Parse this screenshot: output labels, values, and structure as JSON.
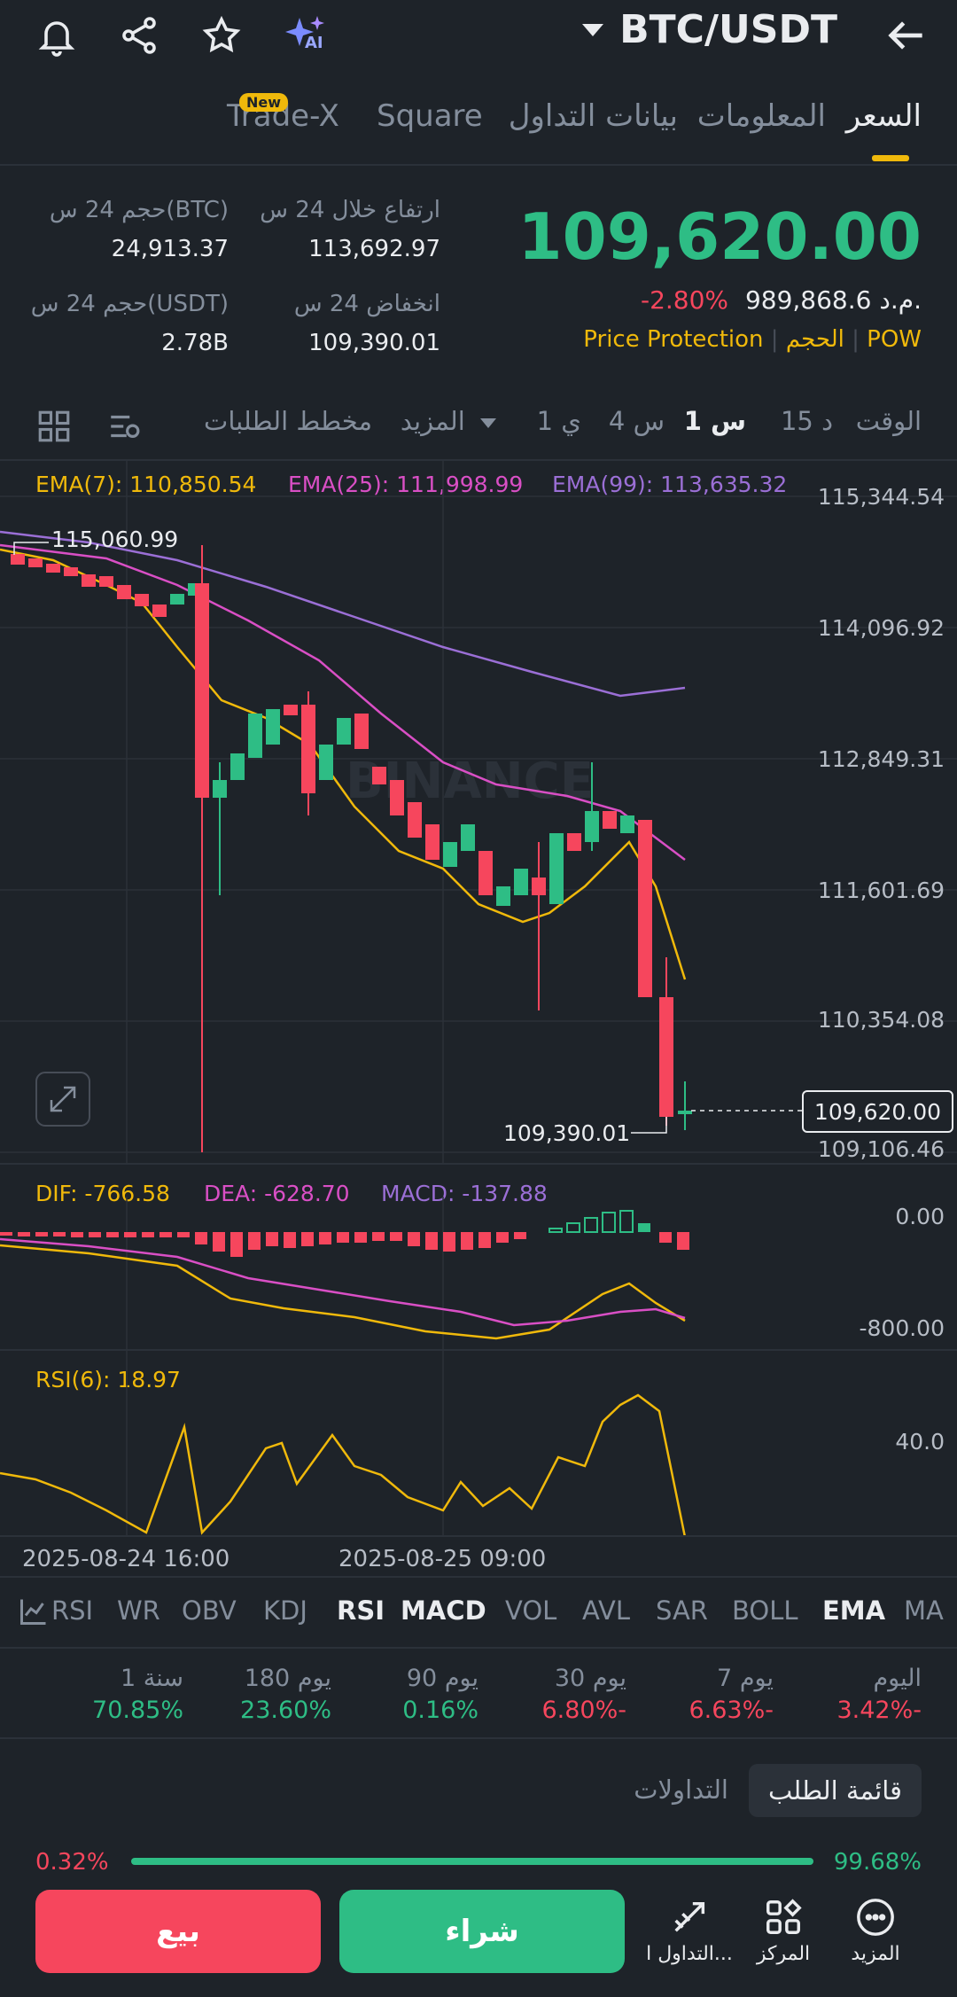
{
  "header": {
    "pair": "BTC/USDT",
    "icons": [
      "bell-icon",
      "share-icon",
      "star-icon",
      "ai-icon",
      "back-arrow-icon"
    ],
    "ai_label": "AI"
  },
  "tabs": [
    {
      "label": "السعر",
      "active": true
    },
    {
      "label": "المعلومات"
    },
    {
      "label": "بيانات التداول"
    },
    {
      "label": "Square"
    },
    {
      "label": "Trade-X"
    }
  ],
  "new_badge": "New",
  "price": {
    "last": "109,620.00",
    "change_pct": "-2.80%",
    "fiat": "989,868.6",
    "fiat_currency": "م.د.",
    "tags": [
      "Price Protection",
      "الحجم",
      "POW"
    ]
  },
  "stats": {
    "high_label": "ارتفاع خلال 24 س",
    "high_value": "113,692.97",
    "low_label": "انخفاض 24 س",
    "low_value": "109,390.01",
    "vol_btc_label": "حجم 24 س(BTC)",
    "vol_btc_value": "24,913.37",
    "vol_usdt_label": "حجم 24 س(USDT)",
    "vol_usdt_value": "2.78B"
  },
  "timeframes": {
    "time_label": "الوقت",
    "items": [
      "15 د",
      "1 س",
      "4 س",
      "1 ي"
    ],
    "active": "1 س",
    "more": "المزيد",
    "depth": "مخطط الطلبات"
  },
  "ema": {
    "ema7": "EMA(7): 110,850.54",
    "ema25": "EMA(25): 111,998.99",
    "ema99": "EMA(99): 113,635.32"
  },
  "price_axis": [
    "115,344.54",
    "114,096.92",
    "112,849.31",
    "111,601.69",
    "110,354.08",
    "109,106.46"
  ],
  "chart_annotations": {
    "high_marker": "115,060.99",
    "low_marker": "109,390.01",
    "current": "109,620.00",
    "watermark": "BINANCE"
  },
  "macd": {
    "dif": "DIF: -766.58",
    "dea": "DEA: -628.70",
    "macd": "MACD: -137.88",
    "axis_top": "0.00",
    "axis_bottom": "-800.00"
  },
  "rsi": {
    "label": "RSI(6): 18.97",
    "axis": "40.0"
  },
  "time_axis": [
    "2025-08-24 16:00",
    "2025-08-25 09:00"
  ],
  "indicator_tabs": [
    "MA",
    "EMA",
    "BOLL",
    "SAR",
    "AVL",
    "VOL",
    "MACD",
    "RSI",
    "KDJ",
    "OBV",
    "WR",
    "RSI"
  ],
  "performance": [
    {
      "label": "اليوم",
      "value": "3.42%-",
      "color": "#f6465d"
    },
    {
      "label": "7 يوم",
      "value": "6.63%-",
      "color": "#f6465d"
    },
    {
      "label": "30 يوم",
      "value": "6.80%-",
      "color": "#f6465d"
    },
    {
      "label": "90 يوم",
      "value": "0.16%",
      "color": "#2ebd85"
    },
    {
      "label": "180 يوم",
      "value": "23.60%",
      "color": "#2ebd85"
    },
    {
      "label": "1 سنة",
      "value": "70.85%",
      "color": "#2ebd85"
    }
  ],
  "orderbook_tabs": {
    "active": "قائمة الطلب",
    "other": "التداولات"
  },
  "ratio": {
    "left": "0.32%",
    "right": "99.68%"
  },
  "bottom": {
    "sell": "بيع",
    "buy": "شراء",
    "nav": [
      {
        "label": "المزيد",
        "icon": "more-icon"
      },
      {
        "label": "المركز",
        "icon": "grid-icon"
      },
      {
        "label": "التداول ا...",
        "icon": "trade-icon"
      }
    ]
  },
  "colors": {
    "up": "#2ebd85",
    "down": "#f6465d",
    "accent": "#f0b90b",
    "ema7": "#f0b90b",
    "ema25": "#d94fc5",
    "ema99": "#9b6fd6"
  }
}
